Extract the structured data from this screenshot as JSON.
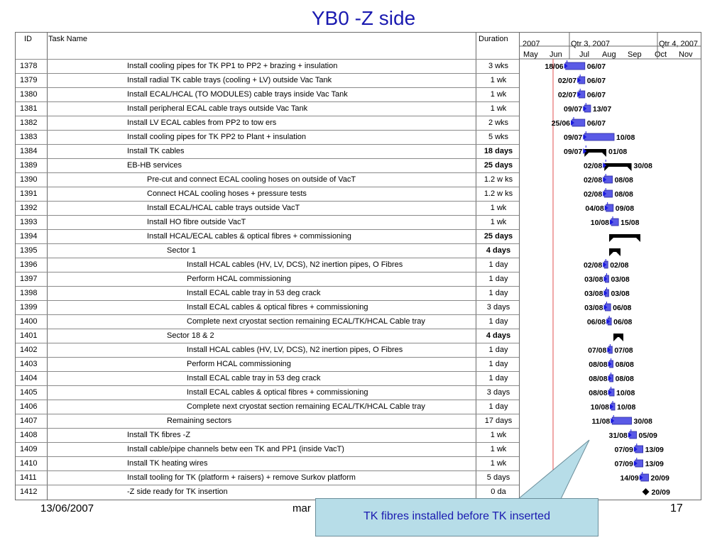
{
  "slide_title": "YB0 -Z side",
  "columns": {
    "id": "ID",
    "task_name": "Task Name",
    "duration": "Duration"
  },
  "timeline": {
    "top": [
      "2007",
      "Qtr 3, 2007",
      "Qtr 4, 2007"
    ],
    "months": [
      "May",
      "Jun",
      "Jul",
      "Aug",
      "Sep",
      "Oct",
      "Nov"
    ]
  },
  "rows": [
    {
      "id": "1378",
      "name": "Install cooling pipes for TK  PP1 to PP2 + brazing + insulation",
      "duration": "3 wks",
      "bold": false,
      "level": 0,
      "start_label": "18/06",
      "end_label": "06/07",
      "kind": "task"
    },
    {
      "id": "1379",
      "name": "Install radial TK cable trays (cooling + LV) outside Vac Tank",
      "duration": "1 wk",
      "bold": false,
      "level": 0,
      "start_label": "02/07",
      "end_label": "06/07",
      "kind": "task"
    },
    {
      "id": "1380",
      "name": "Install ECAL/HCAL (TO MODULES) cable trays inside Vac Tank",
      "duration": "1 wk",
      "bold": false,
      "level": 0,
      "start_label": "02/07",
      "end_label": "06/07",
      "kind": "task"
    },
    {
      "id": "1381",
      "name": "Install peripheral ECAL cable trays outside Vac Tank",
      "duration": "1 wk",
      "bold": false,
      "level": 0,
      "start_label": "09/07",
      "end_label": "13/07",
      "kind": "task"
    },
    {
      "id": "1382",
      "name": "Install LV ECAL cables from PP2 to tow ers",
      "duration": "2 wks",
      "bold": false,
      "level": 0,
      "start_label": "25/06",
      "end_label": "06/07",
      "kind": "task"
    },
    {
      "id": "1383",
      "name": "Install cooling pipes for TK PP2 to Plant + insulation",
      "duration": "5 wks",
      "bold": false,
      "level": 0,
      "start_label": "09/07",
      "end_label": "10/08",
      "kind": "task"
    },
    {
      "id": "1384",
      "name": "Install TK cables",
      "duration": "18 days",
      "bold": true,
      "level": 0,
      "start_label": "09/07",
      "end_label": "01/08",
      "kind": "summary"
    },
    {
      "id": "1389",
      "name": "EB-HB services",
      "duration": "25 days",
      "bold": true,
      "level": 0,
      "start_label": "02/08",
      "end_label": "30/08",
      "kind": "summary"
    },
    {
      "id": "1390",
      "name": "Pre-cut  and connect ECAL cooling hoses on outside of VacT",
      "duration": "1.2 w ks",
      "bold": false,
      "level": 1,
      "start_label": "02/08",
      "end_label": "08/08",
      "kind": "task"
    },
    {
      "id": "1391",
      "name": "Connect HCAL cooling hoses + pressure tests",
      "duration": "1.2 w ks",
      "bold": false,
      "level": 1,
      "start_label": "02/08",
      "end_label": "08/08",
      "kind": "task"
    },
    {
      "id": "1392",
      "name": "Install ECAL/HCAL cable trays outside VacT",
      "duration": "1 wk",
      "bold": false,
      "level": 1,
      "start_label": "04/08",
      "end_label": "09/08",
      "kind": "task"
    },
    {
      "id": "1393",
      "name": "Install HO fibre outside VacT",
      "duration": "1 wk",
      "bold": false,
      "level": 1,
      "start_label": "10/08",
      "end_label": "15/08",
      "kind": "task"
    },
    {
      "id": "1394",
      "name": "Install HCAL/ECAL cables  &  optical fibres + commissioning",
      "duration": "25 days",
      "bold": true,
      "level": 1,
      "start_label": "",
      "end_label": "",
      "kind": "summary"
    },
    {
      "id": "1395",
      "name": "Sector 1",
      "duration": "4 days",
      "bold": true,
      "level": 2,
      "start_label": "",
      "end_label": "",
      "kind": "summary"
    },
    {
      "id": "1396",
      "name": "Install HCAL cables (HV, LV, DCS), N2 inertion pipes, O Fibres",
      "duration": "1 day",
      "bold": false,
      "level": 3,
      "start_label": "02/08",
      "end_label": "02/08",
      "kind": "task"
    },
    {
      "id": "1397",
      "name": "Perform HCAL commissioning",
      "duration": "1 day",
      "bold": false,
      "level": 3,
      "start_label": "03/08",
      "end_label": "03/08",
      "kind": "task"
    },
    {
      "id": "1398",
      "name": "Install ECAL cable tray in 53 deg crack",
      "duration": "1 day",
      "bold": false,
      "level": 3,
      "start_label": "03/08",
      "end_label": "03/08",
      "kind": "task"
    },
    {
      "id": "1399",
      "name": "Install ECAL cables  &  optical fibres + commissioning",
      "duration": "3 days",
      "bold": false,
      "level": 3,
      "start_label": "03/08",
      "end_label": "06/08",
      "kind": "task"
    },
    {
      "id": "1400",
      "name": "Complete next cryostat section remaining ECAL/TK/HCAL Cable tray",
      "duration": "1 day",
      "bold": false,
      "level": 3,
      "start_label": "06/08",
      "end_label": "06/08",
      "kind": "task"
    },
    {
      "id": "1401",
      "name": "Sector 18 & 2",
      "duration": "4 days",
      "bold": true,
      "level": 2,
      "start_label": "",
      "end_label": "",
      "kind": "summary"
    },
    {
      "id": "1402",
      "name": "Install HCAL cables (HV, LV, DCS), N2 inertion pipes, O Fibres",
      "duration": "1 day",
      "bold": false,
      "level": 3,
      "start_label": "07/08",
      "end_label": "07/08",
      "kind": "task"
    },
    {
      "id": "1403",
      "name": "Perform HCAL commissioning",
      "duration": "1 day",
      "bold": false,
      "level": 3,
      "start_label": "08/08",
      "end_label": "08/08",
      "kind": "task"
    },
    {
      "id": "1404",
      "name": "Install ECAL cable tray in 53 deg crack",
      "duration": "1 day",
      "bold": false,
      "level": 3,
      "start_label": "08/08",
      "end_label": "08/08",
      "kind": "task"
    },
    {
      "id": "1405",
      "name": "Install ECAL cables  &  optical fibres + commissioning",
      "duration": "3 days",
      "bold": false,
      "level": 3,
      "start_label": "08/08",
      "end_label": "10/08",
      "kind": "task"
    },
    {
      "id": "1406",
      "name": "Complete next cryostat section remaining ECAL/TK/HCAL Cable tray",
      "duration": "1 day",
      "bold": false,
      "level": 3,
      "start_label": "10/08",
      "end_label": "10/08",
      "kind": "task"
    },
    {
      "id": "1407",
      "name": "Remaining sectors",
      "duration": "17 days",
      "bold": false,
      "level": 2,
      "start_label": "11/08",
      "end_label": "30/08",
      "kind": "task"
    },
    {
      "id": "1408",
      "name": "Install TK fibres -Z",
      "duration": "1 wk",
      "bold": false,
      "level": 0,
      "start_label": "31/08",
      "end_label": "05/09",
      "kind": "task"
    },
    {
      "id": "1409",
      "name": "Install cable/pipe channels betw een TK and PP1 (inside VacT)",
      "duration": "1 wk",
      "bold": false,
      "level": 0,
      "start_label": "07/09",
      "end_label": "13/09",
      "kind": "task"
    },
    {
      "id": "1410",
      "name": "Install TK heating wires",
      "duration": "1 wk",
      "bold": false,
      "level": 0,
      "start_label": "07/09",
      "end_label": "13/09",
      "kind": "task"
    },
    {
      "id": "1411",
      "name": "Install tooling for TK (platform + raisers) + remove Surkov platform",
      "duration": "5 days",
      "bold": false,
      "level": 0,
      "start_label": "14/09",
      "end_label": "20/09",
      "kind": "task"
    },
    {
      "id": "1412",
      "name": "-Z side ready for TK insertion",
      "duration": "0 da",
      "bold": false,
      "level": 0,
      "start_label": "",
      "end_label": "20/09",
      "kind": "milestone"
    }
  ],
  "footer": {
    "date": "13/06/2007",
    "author_partial": "mar",
    "page": "17"
  },
  "callout": {
    "text": "TK fibres installed before TK inserted"
  },
  "colors": {
    "title": "#1a1ab0",
    "task_bar": "#5a5ae6",
    "summary_bar": "#000000",
    "link_arrow": "#1a1ae0",
    "today_line": "#e05050",
    "callout_fill": "#b7dde8"
  }
}
